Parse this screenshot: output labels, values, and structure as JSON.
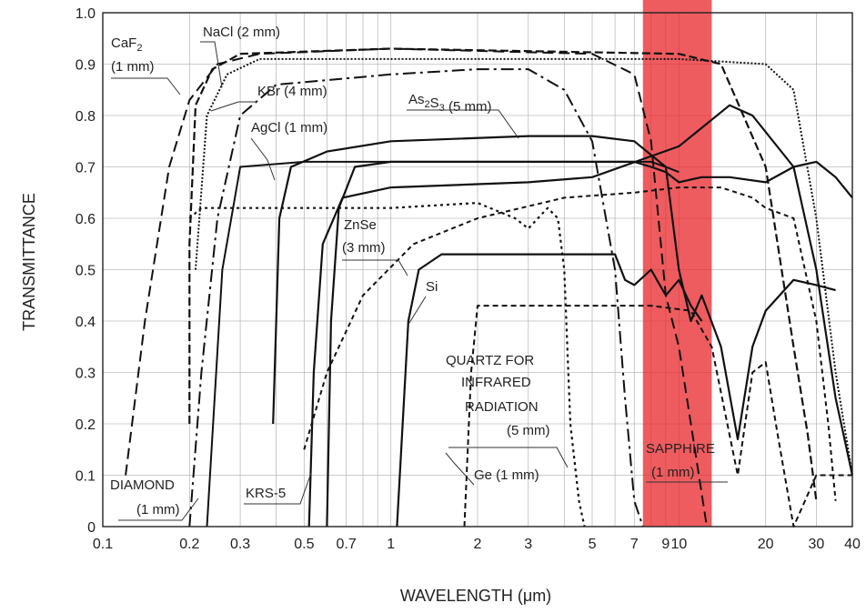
{
  "chart_data": {
    "type": "line",
    "xlabel": "WAVELENGTH (μm)",
    "ylabel": "TRANSMITTANCE",
    "x_scale": "log",
    "xlim": [
      0.1,
      40
    ],
    "ylim": [
      0,
      1.0
    ],
    "x_ticks": [
      {
        "v": 0.1,
        "label": "0.1"
      },
      {
        "v": 0.2,
        "label": "0.2"
      },
      {
        "v": 0.3,
        "label": "0.3"
      },
      {
        "v": 0.5,
        "label": "0.5"
      },
      {
        "v": 0.7,
        "label": "0.7"
      },
      {
        "v": 1,
        "label": "1"
      },
      {
        "v": 2,
        "label": "2"
      },
      {
        "v": 3,
        "label": "3"
      },
      {
        "v": 5,
        "label": "5"
      },
      {
        "v": 7,
        "label": "7"
      },
      {
        "v": 9,
        "label": "9"
      },
      {
        "v": 10,
        "label": "10"
      },
      {
        "v": 20,
        "label": "20"
      },
      {
        "v": 30,
        "label": "30"
      },
      {
        "v": 40,
        "label": "40"
      }
    ],
    "y_ticks": [
      {
        "v": 0,
        "label": "0"
      },
      {
        "v": 0.1,
        "label": "0.1"
      },
      {
        "v": 0.2,
        "label": "0.2"
      },
      {
        "v": 0.3,
        "label": "0.3"
      },
      {
        "v": 0.4,
        "label": "0.4"
      },
      {
        "v": 0.5,
        "label": "0.5"
      },
      {
        "v": 0.6,
        "label": "0.6"
      },
      {
        "v": 0.7,
        "label": "0.7"
      },
      {
        "v": 0.8,
        "label": "0.8"
      },
      {
        "v": 0.9,
        "label": "0.9"
      },
      {
        "v": 1.0,
        "label": "1.0"
      }
    ],
    "grid": true,
    "highlight_band": {
      "x_range": [
        7.5,
        13
      ],
      "color": "#e8262a"
    },
    "series": [
      {
        "name": "CaF2 (1 mm)",
        "dash": "12,6",
        "width": 2,
        "points": [
          [
            0.12,
            0.1
          ],
          [
            0.14,
            0.4
          ],
          [
            0.17,
            0.7
          ],
          [
            0.2,
            0.83
          ],
          [
            0.25,
            0.9
          ],
          [
            0.35,
            0.92
          ],
          [
            1,
            0.93
          ],
          [
            5,
            0.92
          ],
          [
            7,
            0.88
          ],
          [
            8,
            0.75
          ],
          [
            9,
            0.45
          ],
          [
            10,
            0.35
          ],
          [
            11,
            0.2
          ],
          [
            12.5,
            0
          ]
        ]
      },
      {
        "name": "NaCl (2 mm)",
        "dash": "9,4",
        "width": 2.2,
        "points": [
          [
            0.2,
            0.2
          ],
          [
            0.2,
            0.55
          ],
          [
            0.21,
            0.82
          ],
          [
            0.24,
            0.89
          ],
          [
            0.3,
            0.92
          ],
          [
            1,
            0.93
          ],
          [
            10,
            0.92
          ],
          [
            14,
            0.9
          ],
          [
            20,
            0.7
          ],
          [
            25,
            0.35
          ],
          [
            28,
            0.18
          ],
          [
            30,
            0.05
          ]
        ]
      },
      {
        "name": "KBr (4 mm)",
        "dash": "2,2",
        "width": 2,
        "points": [
          [
            0.21,
            0.5
          ],
          [
            0.23,
            0.8
          ],
          [
            0.27,
            0.88
          ],
          [
            0.35,
            0.91
          ],
          [
            1,
            0.91
          ],
          [
            10,
            0.91
          ],
          [
            20,
            0.9
          ],
          [
            25,
            0.85
          ],
          [
            30,
            0.6
          ],
          [
            35,
            0.3
          ],
          [
            40,
            0.1
          ]
        ]
      },
      {
        "name": "AgCl (1 mm)",
        "dash": "",
        "width": 2.2,
        "points": [
          [
            0.39,
            0.2
          ],
          [
            0.41,
            0.6
          ],
          [
            0.45,
            0.7
          ],
          [
            0.6,
            0.73
          ],
          [
            1,
            0.75
          ],
          [
            3,
            0.76
          ],
          [
            5,
            0.76
          ],
          [
            7,
            0.75
          ],
          [
            9,
            0.7
          ],
          [
            10,
            0.5
          ],
          [
            11,
            0.4
          ],
          [
            12,
            0.45
          ],
          [
            14,
            0.35
          ],
          [
            16,
            0.17
          ],
          [
            18,
            0.35
          ],
          [
            20,
            0.42
          ],
          [
            25,
            0.48
          ],
          [
            30,
            0.47
          ],
          [
            35,
            0.46
          ]
        ]
      },
      {
        "name": "As2S3 (5 mm)",
        "dash": "",
        "width": 2.2,
        "points": [
          [
            0.6,
            0
          ],
          [
            0.62,
            0.4
          ],
          [
            0.66,
            0.62
          ],
          [
            0.75,
            0.7
          ],
          [
            1,
            0.71
          ],
          [
            3,
            0.71
          ],
          [
            7,
            0.71
          ],
          [
            8,
            0.7
          ],
          [
            9,
            0.69
          ],
          [
            10,
            0.67
          ],
          [
            12,
            0.68
          ],
          [
            15,
            0.68
          ],
          [
            20,
            0.67
          ],
          [
            25,
            0.7
          ],
          [
            30,
            0.71
          ],
          [
            35,
            0.68
          ],
          [
            40,
            0.64
          ]
        ]
      },
      {
        "name": "ZnSe (3 mm)",
        "dash": "5,4",
        "width": 2,
        "points": [
          [
            0.5,
            0.15
          ],
          [
            0.6,
            0.3
          ],
          [
            0.8,
            0.45
          ],
          [
            1.2,
            0.55
          ],
          [
            2,
            0.6
          ],
          [
            4,
            0.64
          ],
          [
            7,
            0.65
          ],
          [
            10,
            0.66
          ],
          [
            14,
            0.66
          ],
          [
            18,
            0.64
          ],
          [
            20,
            0.62
          ],
          [
            25,
            0.6
          ],
          [
            30,
            0.4
          ],
          [
            33,
            0.2
          ],
          [
            35,
            0.05
          ]
        ]
      },
      {
        "name": "KRS-5",
        "dash": "",
        "width": 2.2,
        "points": [
          [
            0.52,
            0
          ],
          [
            0.54,
            0.3
          ],
          [
            0.58,
            0.55
          ],
          [
            0.68,
            0.64
          ],
          [
            1,
            0.66
          ],
          [
            3,
            0.67
          ],
          [
            5,
            0.68
          ],
          [
            10,
            0.74
          ],
          [
            15,
            0.82
          ],
          [
            18,
            0.8
          ],
          [
            25,
            0.7
          ],
          [
            30,
            0.5
          ],
          [
            35,
            0.25
          ],
          [
            40,
            0.1
          ]
        ]
      },
      {
        "name": "Si",
        "dash": "",
        "width": 2.2,
        "points": [
          [
            1.05,
            0
          ],
          [
            1.15,
            0.4
          ],
          [
            1.25,
            0.5
          ],
          [
            1.5,
            0.53
          ],
          [
            3,
            0.53
          ],
          [
            6,
            0.53
          ],
          [
            6.5,
            0.48
          ],
          [
            7,
            0.47
          ],
          [
            8,
            0.5
          ],
          [
            9,
            0.45
          ],
          [
            10,
            0.48
          ],
          [
            11,
            0.43
          ],
          [
            12,
            0.4
          ]
        ]
      },
      {
        "name": "QUARTZ FOR INFRARED RADIATION (5 mm)",
        "dash": "3,4",
        "width": 2.2,
        "points": [
          [
            0.2,
            0.6
          ],
          [
            0.22,
            0.62
          ],
          [
            0.3,
            0.62
          ],
          [
            1,
            0.62
          ],
          [
            2,
            0.63
          ],
          [
            2.7,
            0.6
          ],
          [
            3,
            0.58
          ],
          [
            3.5,
            0.62
          ],
          [
            3.8,
            0.6
          ],
          [
            4,
            0.5
          ],
          [
            4.2,
            0.2
          ],
          [
            4.5,
            0.05
          ],
          [
            4.7,
            0
          ]
        ]
      },
      {
        "name": "Ge (1 mm)",
        "dash": "6,4",
        "width": 2,
        "points": [
          [
            1.8,
            0
          ],
          [
            1.9,
            0.3
          ],
          [
            2,
            0.43
          ],
          [
            3,
            0.43
          ],
          [
            8,
            0.43
          ],
          [
            11,
            0.42
          ],
          [
            13,
            0.35
          ],
          [
            16,
            0.1
          ],
          [
            18,
            0.3
          ],
          [
            20,
            0.32
          ],
          [
            22,
            0.18
          ],
          [
            25,
            0
          ],
          [
            30,
            0.1
          ],
          [
            35,
            0.1
          ],
          [
            40,
            0.1
          ]
        ]
      },
      {
        "name": "SAPPHIRE (1 mm)",
        "dash": "14,5,3,5",
        "width": 2,
        "points": [
          [
            0.2,
            0
          ],
          [
            0.22,
            0.3
          ],
          [
            0.25,
            0.6
          ],
          [
            0.3,
            0.8
          ],
          [
            0.4,
            0.86
          ],
          [
            1,
            0.88
          ],
          [
            2,
            0.89
          ],
          [
            3,
            0.89
          ],
          [
            4,
            0.85
          ],
          [
            5,
            0.75
          ],
          [
            6,
            0.5
          ],
          [
            6.5,
            0.25
          ],
          [
            7,
            0.05
          ],
          [
            7.5,
            0
          ]
        ]
      },
      {
        "name": "DIAMOND (1 mm)",
        "dash": "",
        "width": 2,
        "points": [
          [
            0.23,
            0
          ],
          [
            0.26,
            0.5
          ],
          [
            0.3,
            0.7
          ],
          [
            0.5,
            0.71
          ],
          [
            1,
            0.71
          ],
          [
            3,
            0.71
          ],
          [
            5,
            0.71
          ],
          [
            6,
            0.71
          ],
          [
            8,
            0.71
          ],
          [
            9,
            0.7
          ],
          [
            10,
            0.69
          ]
        ]
      }
    ],
    "annotations": [
      {
        "text": "CaF",
        "sub": "2",
        "after": ""
      },
      {
        "text": "(1 mm)"
      },
      {
        "text": "NaCl (2 mm)"
      },
      {
        "text": "KBr (4 mm)"
      },
      {
        "text": "AgCl (1 mm)"
      },
      {
        "text": "As",
        "sub": "2",
        "after": "S",
        "sub2": "3",
        "after2": " (5 mm)"
      },
      {
        "text": "ZnSe"
      },
      {
        "text": "(3 mm)"
      },
      {
        "text": "Si"
      },
      {
        "text": "QUARTZ FOR"
      },
      {
        "text": "INFRARED"
      },
      {
        "text": "RADIATION"
      },
      {
        "text": "(5 mm)"
      },
      {
        "text": "SAPPHIRE"
      },
      {
        "text": "(1 mm)"
      },
      {
        "text": "Ge (1 mm)"
      },
      {
        "text": "DIAMOND"
      },
      {
        "text": "(1 mm)"
      },
      {
        "text": "KRS-5"
      }
    ]
  }
}
